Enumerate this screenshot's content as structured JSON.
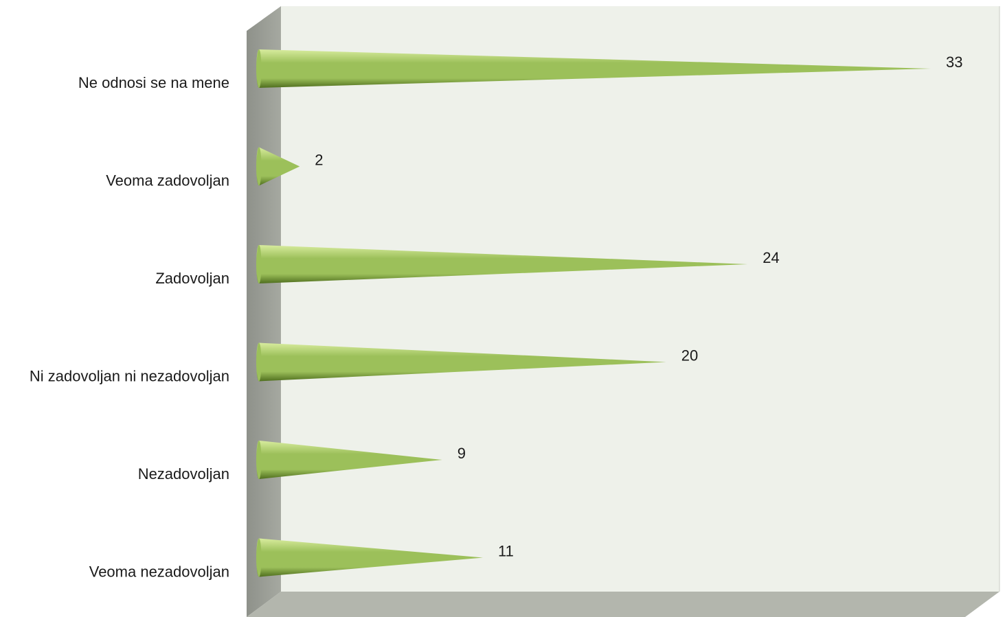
{
  "colors": {
    "back_wall": "#eef1ea",
    "side_wall": "#9a9d95",
    "floor": "#b3b6ad",
    "cone_light": "#d8ec9e",
    "cone_mid": "#9cc05a",
    "cone_dark": "#4f6e1e"
  },
  "chart_data": {
    "type": "bar",
    "orientation": "horizontal",
    "style": "3d-cone",
    "title": "",
    "xlabel": "",
    "ylabel": "",
    "grid": false,
    "legend": "none",
    "xlim": [
      0,
      35
    ],
    "categories": [
      "Ne odnosi se na mene",
      "Veoma zadovoljan",
      "Zadovoljan",
      "Ni zadovoljan ni nezadovoljan",
      "Nezadovoljan",
      "Veoma nezadovoljan"
    ],
    "values": [
      33,
      2,
      24,
      20,
      9,
      11
    ],
    "data_labels": [
      "33",
      "2",
      "24",
      "20",
      "9",
      "11"
    ]
  }
}
